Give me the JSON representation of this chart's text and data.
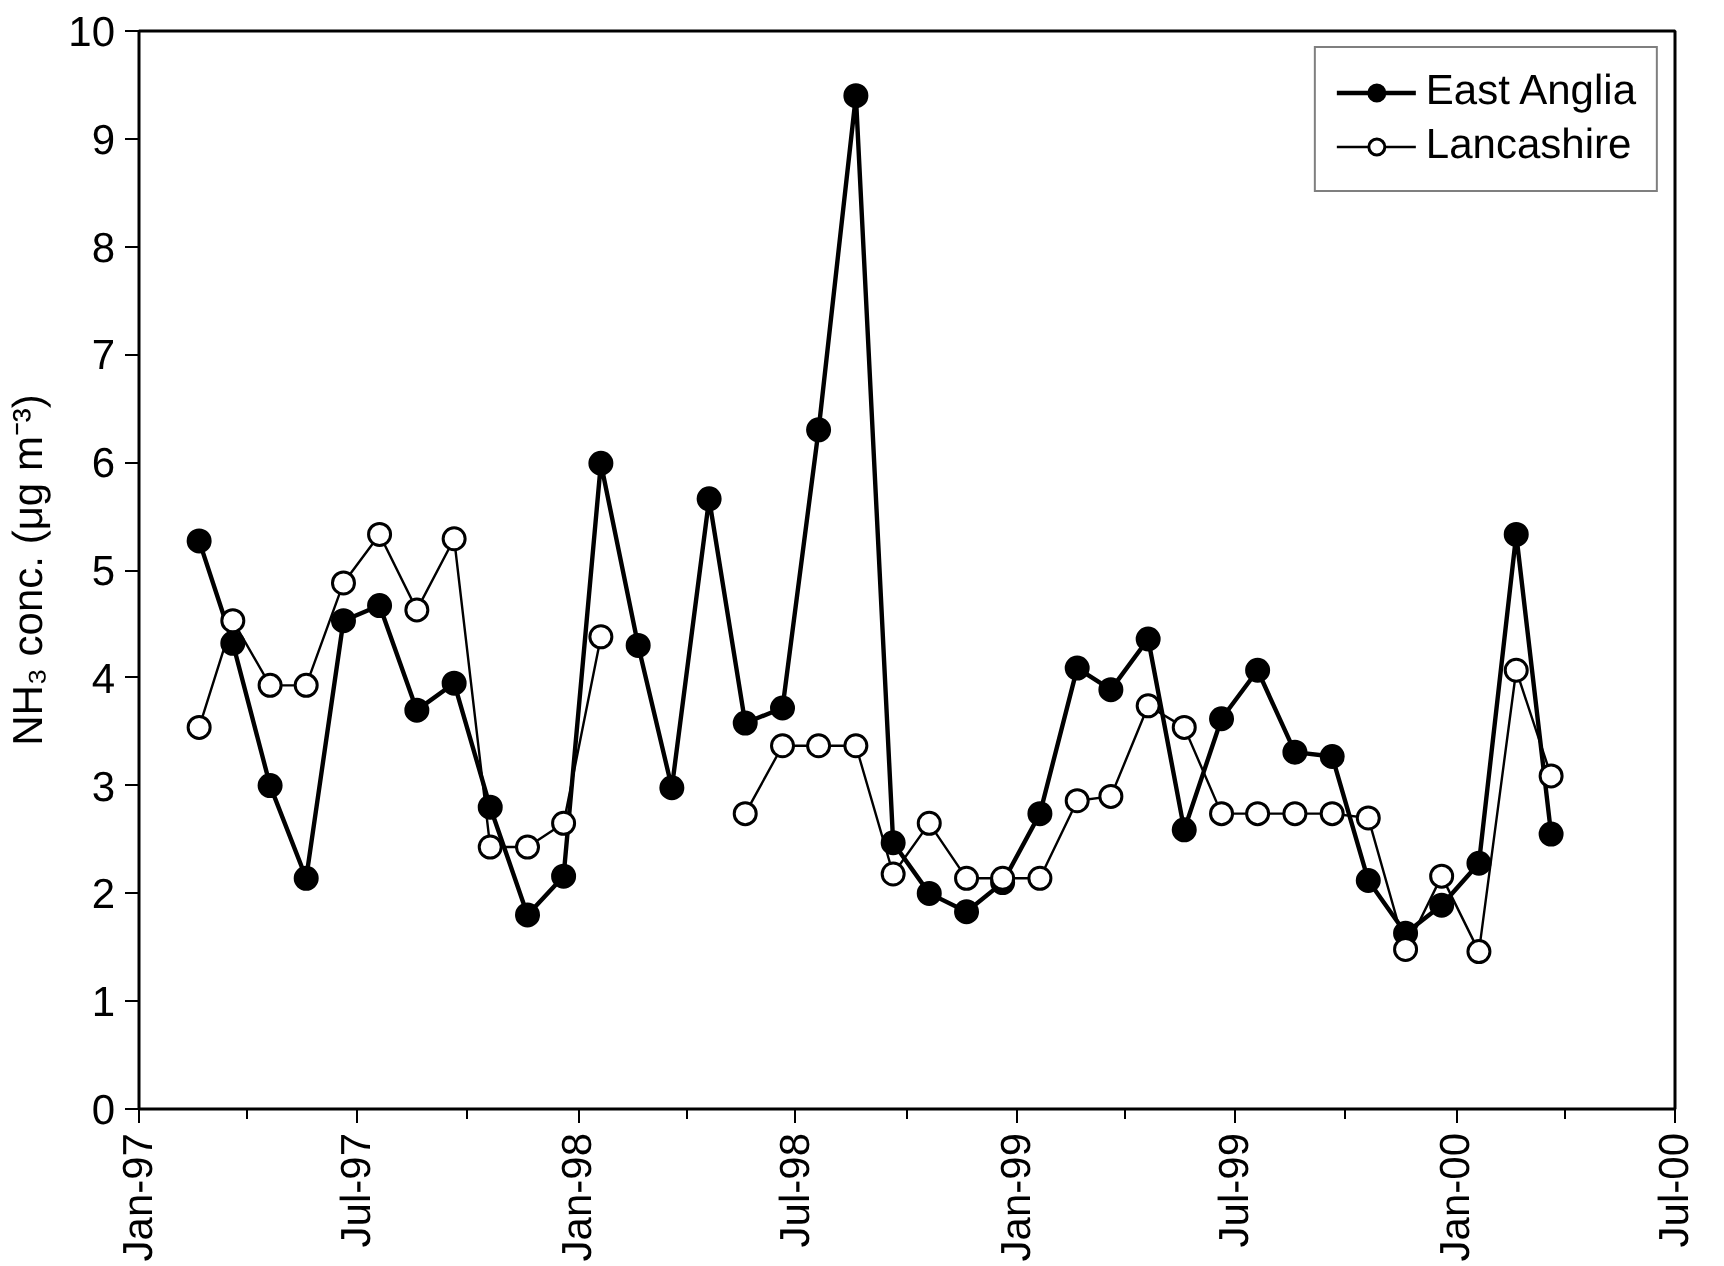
{
  "chart_data": {
    "type": "line",
    "ylabel": "NH₃ conc. (μg m⁻³)",
    "x": [
      "1997-02-20",
      "1997-03-20",
      "1997-04-20",
      "1997-05-20",
      "1997-06-20",
      "1997-07-20",
      "1997-08-20",
      "1997-09-20",
      "1997-10-20",
      "1997-11-20",
      "1997-12-20",
      "1998-01-20",
      "1998-02-20",
      "1998-03-20",
      "1998-04-20",
      "1998-05-20",
      "1998-06-20",
      "1998-07-20",
      "1998-08-20",
      "1998-09-20",
      "1998-10-20",
      "1998-11-20",
      "1998-12-20",
      "1999-01-20",
      "1999-02-20",
      "1999-03-20",
      "1999-04-20",
      "1999-05-20",
      "1999-06-20",
      "1999-07-20",
      "1999-08-20",
      "1999-09-20",
      "1999-10-20",
      "1999-11-20",
      "1999-12-20",
      "2000-01-20",
      "2000-02-20",
      "2000-03-20"
    ],
    "series": [
      {
        "name": "East Anglia",
        "color": "#000000",
        "values": [
          5.27,
          4.32,
          3.0,
          2.14,
          4.53,
          4.67,
          3.7,
          3.95,
          2.8,
          1.8,
          2.16,
          5.99,
          4.3,
          2.98,
          5.66,
          3.58,
          3.72,
          6.3,
          9.4,
          2.47,
          2.0,
          1.83,
          2.1,
          2.74,
          4.09,
          3.89,
          4.36,
          2.59,
          3.62,
          4.07,
          3.31,
          3.27,
          2.12,
          1.63,
          1.89,
          2.28,
          5.33,
          2.55
        ]
      },
      {
        "name": "Lancashire",
        "color": "#000000",
        "values": [
          3.54,
          4.53,
          3.93,
          3.93,
          4.88,
          5.33,
          4.63,
          5.29,
          2.43,
          2.43,
          2.65,
          4.38,
          null,
          null,
          null,
          2.74,
          3.37,
          3.37,
          3.37,
          2.18,
          2.65,
          2.14,
          2.14,
          2.14,
          2.86,
          2.9,
          3.74,
          3.54,
          2.74,
          2.74,
          2.74,
          2.74,
          2.7,
          1.48,
          2.16,
          1.46,
          4.07,
          3.09
        ]
      }
    ],
    "xlim": [
      "1997-01-01",
      "2000-07-01"
    ],
    "xticks": [
      {
        "value": "1997-01-01",
        "label": "Jan-97"
      },
      {
        "value": "1997-04-01",
        "label": null
      },
      {
        "value": "1997-07-01",
        "label": "Jul-97"
      },
      {
        "value": "1997-10-01",
        "label": null
      },
      {
        "value": "1998-01-01",
        "label": "Jan-98"
      },
      {
        "value": "1998-04-01",
        "label": null
      },
      {
        "value": "1998-07-01",
        "label": "Jul-98"
      },
      {
        "value": "1998-10-01",
        "label": null
      },
      {
        "value": "1999-01-01",
        "label": "Jan-99"
      },
      {
        "value": "1999-04-01",
        "label": null
      },
      {
        "value": "1999-07-01",
        "label": "Jul-99"
      },
      {
        "value": "1999-10-01",
        "label": null
      },
      {
        "value": "2000-01-01",
        "label": "Jan-00"
      },
      {
        "value": "2000-04-01",
        "label": null
      },
      {
        "value": "2000-07-01",
        "label": "Jul-00"
      }
    ],
    "ylim": [
      0,
      10
    ],
    "yticks": [
      0,
      1,
      2,
      3,
      4,
      5,
      6,
      7,
      8,
      9,
      10
    ],
    "grid": false,
    "legend": "top right",
    "marker": "circle",
    "line_style": "solid"
  }
}
